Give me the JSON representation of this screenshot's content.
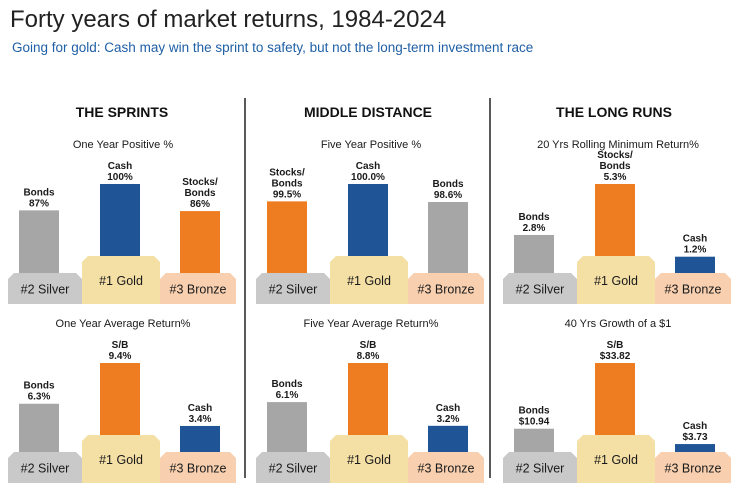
{
  "header": {
    "title": "Forty years of market returns, 1984-2024",
    "subtitle": "Going for gold: Cash may win the sprint to safety, but not the long-term investment race"
  },
  "columns": [
    "THE SPRINTS",
    "MIDDLE DISTANCE",
    "THE LONG RUNS"
  ],
  "podium": {
    "silver": "#2 Silver",
    "gold": "#1 Gold",
    "bronze": "#3 Bronze"
  },
  "colors": {
    "silver_bar": "#a6a6a6",
    "gold_bar_blue": "#1f5597",
    "gold_bar_orange": "#ee7d22",
    "podium_silver": "#c9c9c9",
    "podium_gold": "#f4dfa5",
    "podium_bronze": "#f8d0b0",
    "subtitle": "#1f5fa6"
  },
  "chart_data": [
    {
      "type": "bar",
      "title": "One Year Positive %",
      "unit": "%",
      "bars": [
        {
          "place": "silver",
          "label": [
            "Bonds"
          ],
          "value_label": "87%",
          "value": 87,
          "color": "#a6a6a6"
        },
        {
          "place": "gold",
          "label": [
            "Cash"
          ],
          "value_label": "100%",
          "value": 100,
          "color": "#1f5597"
        },
        {
          "place": "bronze",
          "label": [
            "Stocks/",
            "Bonds"
          ],
          "value_label": "86%",
          "value": 86,
          "color": "#ee7d22"
        }
      ]
    },
    {
      "type": "bar",
      "title": "Five Year Positive %",
      "unit": "%",
      "bars": [
        {
          "place": "silver",
          "label": [
            "Stocks/",
            "Bonds"
          ],
          "value_label": "99.5%",
          "value": 99.5,
          "color": "#ee7d22"
        },
        {
          "place": "gold",
          "label": [
            "Cash"
          ],
          "value_label": "100.0%",
          "value": 100.0,
          "color": "#1f5597"
        },
        {
          "place": "bronze",
          "label": [
            "Bonds"
          ],
          "value_label": "98.6%",
          "value": 98.6,
          "color": "#a6a6a6"
        }
      ]
    },
    {
      "type": "bar",
      "title": "20 Yrs Rolling Minimum Return%",
      "unit": "%",
      "bars": [
        {
          "place": "silver",
          "label": [
            "Bonds"
          ],
          "value_label": "2.8%",
          "value": 2.8,
          "color": "#a6a6a6"
        },
        {
          "place": "gold",
          "label": [
            "Stocks/",
            "Bonds"
          ],
          "value_label": "5.3%",
          "value": 5.3,
          "color": "#ee7d22"
        },
        {
          "place": "bronze",
          "label": [
            "Cash"
          ],
          "value_label": "1.2%",
          "value": 1.2,
          "color": "#1f5597"
        }
      ]
    },
    {
      "type": "bar",
      "title": "One Year Average Return%",
      "unit": "%",
      "bars": [
        {
          "place": "silver",
          "label": [
            "Bonds"
          ],
          "value_label": "6.3%",
          "value": 6.3,
          "color": "#a6a6a6"
        },
        {
          "place": "gold",
          "label": [
            "S/B"
          ],
          "value_label": "9.4%",
          "value": 9.4,
          "color": "#ee7d22"
        },
        {
          "place": "bronze",
          "label": [
            "Cash"
          ],
          "value_label": "3.4%",
          "value": 3.4,
          "color": "#1f5597"
        }
      ]
    },
    {
      "type": "bar",
      "title": "Five Year Average Return%",
      "unit": "%",
      "bars": [
        {
          "place": "silver",
          "label": [
            "Bonds"
          ],
          "value_label": "6.1%",
          "value": 6.1,
          "color": "#a6a6a6"
        },
        {
          "place": "gold",
          "label": [
            "S/B"
          ],
          "value_label": "8.8%",
          "value": 8.8,
          "color": "#ee7d22"
        },
        {
          "place": "bronze",
          "label": [
            "Cash"
          ],
          "value_label": "3.2%",
          "value": 3.2,
          "color": "#1f5597"
        }
      ]
    },
    {
      "type": "bar",
      "title": "40 Yrs Growth of a $1",
      "unit": "$",
      "bars": [
        {
          "place": "silver",
          "label": [
            "Bonds"
          ],
          "value_label": "$10.94",
          "value": 10.94,
          "color": "#a6a6a6"
        },
        {
          "place": "gold",
          "label": [
            "S/B"
          ],
          "value_label": "$33.82",
          "value": 33.82,
          "color": "#ee7d22"
        },
        {
          "place": "bronze",
          "label": [
            "Cash"
          ],
          "value_label": "$3.73",
          "value": 3.73,
          "color": "#1f5597"
        }
      ]
    }
  ]
}
